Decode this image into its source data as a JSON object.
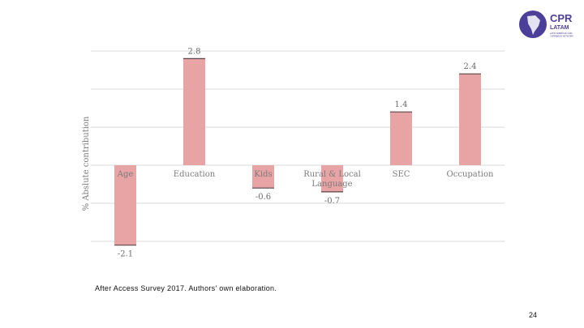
{
  "logo": {
    "name": "CPR",
    "sub": "LATAM",
    "tagline_1": "LATIN AMERICAN AND",
    "tagline_2": "CARIBBEAN NETWORK"
  },
  "chart_data": {
    "type": "bar",
    "title": "",
    "xlabel": "",
    "ylabel": "% Abslute contribution",
    "categories": [
      "Age",
      "Education",
      "Kids",
      "Rural & Local Language",
      "SEC",
      "Occupation"
    ],
    "category_lines": [
      [
        "Age"
      ],
      [
        "Education"
      ],
      [
        "Kids"
      ],
      [
        "Rural & Local",
        "Language"
      ],
      [
        "SEC"
      ],
      [
        "Occupation"
      ]
    ],
    "values": [
      -2.1,
      2.8,
      -0.6,
      -0.7,
      1.4,
      2.4
    ],
    "value_labels": [
      "-2.1",
      "2.8",
      "-0.6",
      "-0.7",
      "1.4",
      "2.4"
    ],
    "ylim": [
      -2.0,
      3.0
    ],
    "gridlines": [
      -2,
      -1,
      0,
      1,
      2,
      3
    ],
    "grid": true,
    "bar_color": "#e8a3a5",
    "bar_edge_color": "#5a4548"
  },
  "footer": {
    "source": "After Access Survey 2017. Authors' own elaboration.",
    "page_number": "24"
  }
}
